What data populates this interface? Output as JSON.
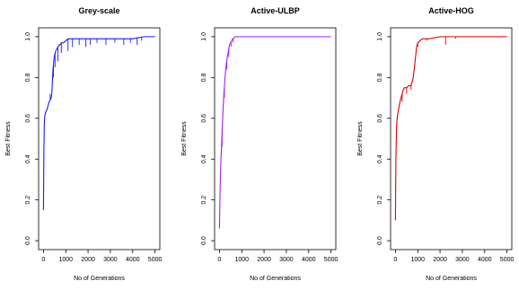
{
  "chart_data": [
    {
      "type": "line",
      "title": "Grey-scale",
      "xlabel": "No of Generations",
      "ylabel": "Best Fitness",
      "xlim": [
        0,
        5000
      ],
      "ylim": [
        0,
        1
      ],
      "x_ticks": [
        "0",
        "1000",
        "2000",
        "3000",
        "4000",
        "5000"
      ],
      "y_ticks": [
        "0.0",
        "0.2",
        "0.4",
        "0.6",
        "0.8",
        "1.0"
      ],
      "grid": false,
      "color": "#1a1aff",
      "series": [
        {
          "x": [
            0,
            20,
            40,
            60,
            80,
            100,
            150,
            200,
            250,
            300,
            350,
            380,
            400,
            430,
            460,
            500,
            550,
            600,
            650,
            700,
            750,
            800,
            900,
            1000,
            1100,
            1200,
            1500,
            2000,
            2500,
            3000,
            3500,
            4000,
            4500,
            5000
          ],
          "y": [
            0.15,
            0.45,
            0.58,
            0.61,
            0.62,
            0.63,
            0.64,
            0.66,
            0.68,
            0.69,
            0.7,
            0.73,
            0.78,
            0.84,
            0.88,
            0.91,
            0.93,
            0.94,
            0.95,
            0.96,
            0.96,
            0.97,
            0.97,
            0.98,
            0.99,
            0.99,
            0.99,
            0.99,
            0.99,
            0.99,
            0.99,
            0.99,
            1.0,
            1.0
          ],
          "dips": [
            [
              300,
              0.72
            ],
            [
              450,
              0.8
            ],
            [
              520,
              0.85
            ],
            [
              650,
              0.88
            ],
            [
              800,
              0.92
            ],
            [
              1100,
              0.93
            ],
            [
              1300,
              0.95
            ],
            [
              1600,
              0.96
            ],
            [
              1900,
              0.95
            ],
            [
              2100,
              0.96
            ],
            [
              2400,
              0.97
            ],
            [
              2800,
              0.96
            ],
            [
              3200,
              0.97
            ],
            [
              3600,
              0.96
            ],
            [
              3900,
              0.97
            ],
            [
              4200,
              0.96
            ],
            [
              4400,
              0.98
            ]
          ]
        }
      ]
    },
    {
      "type": "line",
      "title": "Active-ULBP",
      "xlabel": "No of Generations",
      "ylabel": "Best Fitness",
      "xlim": [
        0,
        5000
      ],
      "ylim": [
        0,
        1
      ],
      "x_ticks": [
        "0",
        "1000",
        "2000",
        "3000",
        "4000",
        "5000"
      ],
      "y_ticks": [
        "0.0",
        "0.2",
        "0.4",
        "0.6",
        "0.8",
        "1.0"
      ],
      "grid": false,
      "color": "#a020f0",
      "series": [
        {
          "x": [
            0,
            20,
            40,
            60,
            80,
            100,
            150,
            200,
            250,
            300,
            350,
            400,
            450,
            500,
            550,
            600,
            700,
            800,
            1000,
            1500,
            2000,
            3000,
            4000,
            5000
          ],
          "y": [
            0.06,
            0.2,
            0.3,
            0.38,
            0.43,
            0.48,
            0.62,
            0.72,
            0.8,
            0.86,
            0.9,
            0.93,
            0.96,
            0.97,
            0.98,
            0.99,
            1.0,
            1.0,
            1.0,
            1.0,
            1.0,
            1.0,
            1.0,
            1.0
          ],
          "dips": [
            [
              120,
              0.46
            ],
            [
              220,
              0.7
            ],
            [
              330,
              0.84
            ],
            [
              420,
              0.9
            ],
            [
              520,
              0.95
            ],
            [
              620,
              0.97
            ]
          ]
        }
      ]
    },
    {
      "type": "line",
      "title": "Active-HOG",
      "xlabel": "No of Generations",
      "ylabel": "Best Fitness",
      "xlim": [
        0,
        5000
      ],
      "ylim": [
        0,
        1
      ],
      "x_ticks": [
        "0",
        "1000",
        "2000",
        "3000",
        "4000",
        "5000"
      ],
      "y_ticks": [
        "0.0",
        "0.2",
        "0.4",
        "0.6",
        "0.8",
        "1.0"
      ],
      "grid": false,
      "color": "#e00000",
      "series": [
        {
          "x": [
            0,
            20,
            40,
            60,
            100,
            150,
            200,
            250,
            300,
            350,
            400,
            500,
            600,
            700,
            800,
            850,
            900,
            950,
            1000,
            1100,
            1200,
            1500,
            2000,
            2500,
            3000,
            4000,
            5000
          ],
          "y": [
            0.1,
            0.4,
            0.5,
            0.58,
            0.62,
            0.65,
            0.68,
            0.7,
            0.72,
            0.74,
            0.75,
            0.75,
            0.76,
            0.76,
            0.8,
            0.85,
            0.9,
            0.95,
            0.97,
            0.98,
            0.99,
            0.99,
            1.0,
            1.0,
            1.0,
            1.0,
            1.0
          ],
          "dips": [
            [
              300,
              0.68
            ],
            [
              500,
              0.72
            ],
            [
              700,
              0.74
            ],
            [
              1000,
              0.95
            ],
            [
              1400,
              0.98
            ],
            [
              2250,
              0.96
            ],
            [
              2700,
              0.99
            ]
          ]
        }
      ]
    }
  ]
}
